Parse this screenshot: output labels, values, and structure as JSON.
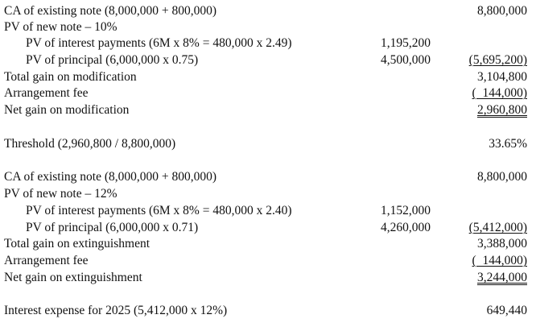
{
  "section1": {
    "ca_label": "CA of existing note (8,000,000 + 800,000)",
    "ca_total": "8,800,000",
    "pv_new_label": "PV of new note – 10%",
    "pv_interest_label": "PV of interest payments (6M x 8% = 480,000 x 2.49)",
    "pv_interest_value": "1,195,200",
    "pv_principal_label": "PV of principal (6,000,000 x 0.75)",
    "pv_principal_value": "4,500,000",
    "pv_principal_total": "(5,695,200)",
    "total_gain_label": "Total gain on modification",
    "total_gain_value": "3,104,800",
    "fee_label": "Arrangement fee",
    "fee_value": "(  144,000)",
    "net_gain_label": "Net gain on modification",
    "net_gain_value": "2,960,800"
  },
  "threshold": {
    "label": "Threshold (2,960,800 / 8,800,000)",
    "value": "33.65%"
  },
  "section2": {
    "ca_label": "CA of existing note (8,000,000 + 800,000)",
    "ca_total": "8,800,000",
    "pv_new_label": "PV of new note – 12%",
    "pv_interest_label": "PV of interest payments (6M x 8% = 480,000 x 2.40)",
    "pv_interest_value": "1,152,000",
    "pv_principal_label": "PV of principal (6,000,000 x 0.71)",
    "pv_principal_value": "4,260,000",
    "pv_principal_total": "(5,412,000)",
    "total_gain_label": "Total gain on extinguishment",
    "total_gain_value": "3,388,000",
    "fee_label": "Arrangement fee",
    "fee_value": "(  144,000)",
    "net_gain_label": "Net gain on extinguishment",
    "net_gain_value": "3,244,000"
  },
  "interest": {
    "label": "Interest expense for 2025 (5,412,000 x 12%)",
    "value": "649,440"
  }
}
